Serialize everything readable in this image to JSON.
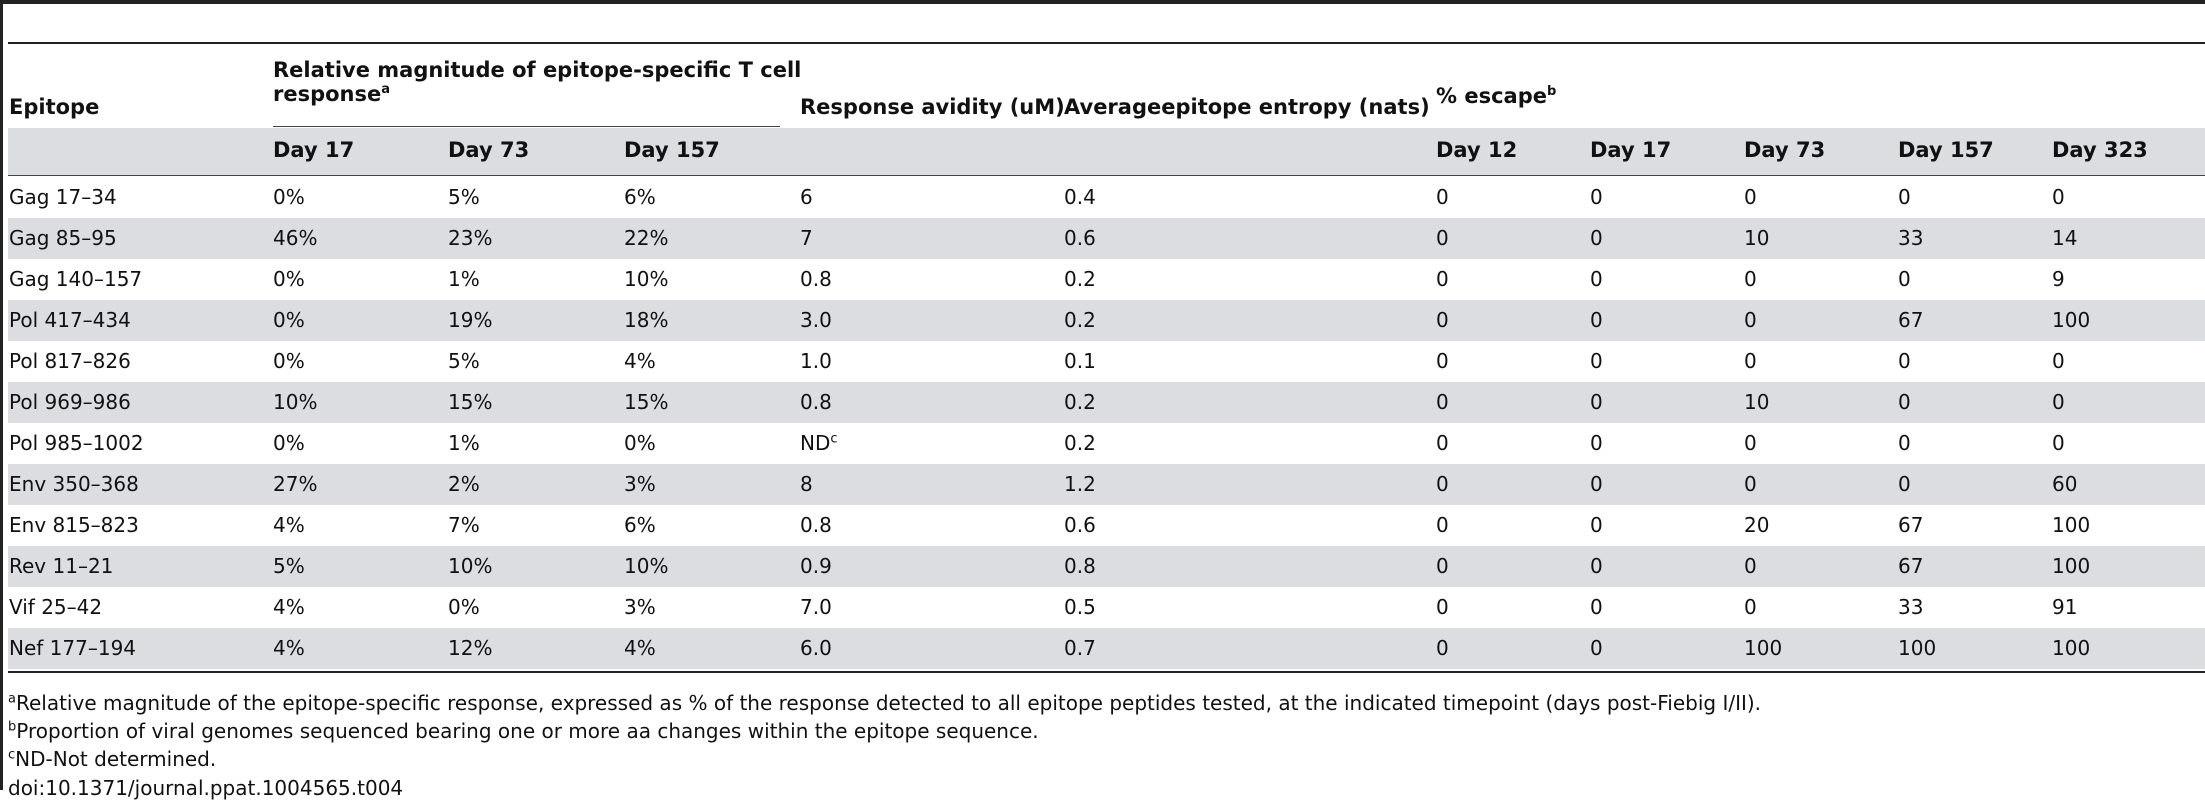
{
  "header": {
    "epitope": "Epitope",
    "magnitude_line1": "Relative magnitude of epitope-specific T cell",
    "magnitude_line2": "response",
    "magnitude_sup": "a",
    "avidity": "Response avidity (uM)",
    "entropy": "Averageepitope entropy (nats)",
    "escape": "% escape",
    "escape_sup": "b",
    "magnitude_days": [
      "Day 17",
      "Day 73",
      "Day 157"
    ],
    "escape_days": [
      "Day 12",
      "Day 17",
      "Day 73",
      "Day 157",
      "Day 323"
    ]
  },
  "rows": [
    {
      "epitope": "Gag 17–34",
      "mag": [
        "0%",
        "5%",
        "6%"
      ],
      "avidity": "6",
      "avidity_sup": "",
      "entropy": "0.4",
      "escape": [
        "0",
        "0",
        "0",
        "0",
        "0"
      ]
    },
    {
      "epitope": "Gag 85–95",
      "mag": [
        "46%",
        "23%",
        "22%"
      ],
      "avidity": "7",
      "avidity_sup": "",
      "entropy": "0.6",
      "escape": [
        "0",
        "0",
        "10",
        "33",
        "14"
      ]
    },
    {
      "epitope": "Gag 140–157",
      "mag": [
        "0%",
        "1%",
        "10%"
      ],
      "avidity": "0.8",
      "avidity_sup": "",
      "entropy": "0.2",
      "escape": [
        "0",
        "0",
        "0",
        "0",
        "9"
      ]
    },
    {
      "epitope": "Pol 417–434",
      "mag": [
        "0%",
        "19%",
        "18%"
      ],
      "avidity": "3.0",
      "avidity_sup": "",
      "entropy": "0.2",
      "escape": [
        "0",
        "0",
        "0",
        "67",
        "100"
      ]
    },
    {
      "epitope": "Pol 817–826",
      "mag": [
        "0%",
        "5%",
        "4%"
      ],
      "avidity": "1.0",
      "avidity_sup": "",
      "entropy": "0.1",
      "escape": [
        "0",
        "0",
        "0",
        "0",
        "0"
      ]
    },
    {
      "epitope": "Pol 969–986",
      "mag": [
        "10%",
        "15%",
        "15%"
      ],
      "avidity": "0.8",
      "avidity_sup": "",
      "entropy": "0.2",
      "escape": [
        "0",
        "0",
        "10",
        "0",
        "0"
      ]
    },
    {
      "epitope": "Pol 985–1002",
      "mag": [
        "0%",
        "1%",
        "0%"
      ],
      "avidity": "ND",
      "avidity_sup": "c",
      "entropy": "0.2",
      "escape": [
        "0",
        "0",
        "0",
        "0",
        "0"
      ]
    },
    {
      "epitope": "Env 350–368",
      "mag": [
        "27%",
        "2%",
        "3%"
      ],
      "avidity": "8",
      "avidity_sup": "",
      "entropy": "1.2",
      "escape": [
        "0",
        "0",
        "0",
        "0",
        "60"
      ]
    },
    {
      "epitope": "Env 815–823",
      "mag": [
        "4%",
        "7%",
        "6%"
      ],
      "avidity": "0.8",
      "avidity_sup": "",
      "entropy": "0.6",
      "escape": [
        "0",
        "0",
        "20",
        "67",
        "100"
      ]
    },
    {
      "epitope": "Rev 11–21",
      "mag": [
        "5%",
        "10%",
        "10%"
      ],
      "avidity": "0.9",
      "avidity_sup": "",
      "entropy": "0.8",
      "escape": [
        "0",
        "0",
        "0",
        "67",
        "100"
      ]
    },
    {
      "epitope": "Vif 25–42",
      "mag": [
        "4%",
        "0%",
        "3%"
      ],
      "avidity": "7.0",
      "avidity_sup": "",
      "entropy": "0.5",
      "escape": [
        "0",
        "0",
        "0",
        "33",
        "91"
      ]
    },
    {
      "epitope": "Nef 177–194",
      "mag": [
        "4%",
        "12%",
        "4%"
      ],
      "avidity": "6.0",
      "avidity_sup": "",
      "entropy": "0.7",
      "escape": [
        "0",
        "0",
        "100",
        "100",
        "100"
      ]
    }
  ],
  "footnotes": [
    {
      "sup": "a",
      "text": "Relative magnitude of the epitope-specific response, expressed as % of the response detected to all epitope peptides tested, at the indicated timepoint (days post-Fiebig I/II)."
    },
    {
      "sup": "b",
      "text": "Proportion of viral genomes sequenced bearing one or more aa changes within the epitope sequence."
    },
    {
      "sup": "c",
      "text": "ND-Not determined."
    }
  ],
  "doi": "doi:10.1371/journal.ppat.1004565.t004"
}
